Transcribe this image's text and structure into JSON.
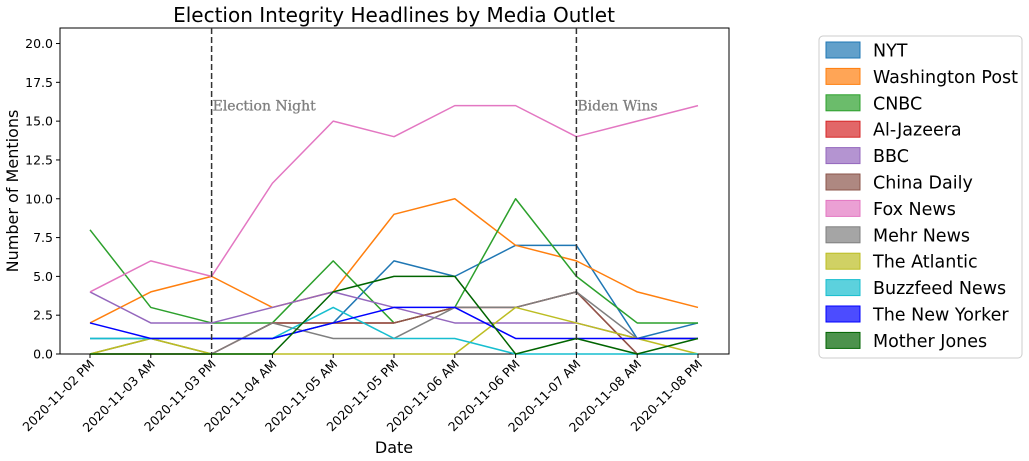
{
  "chart_data": {
    "type": "line",
    "title": "Election Integrity Headlines by Media Outlet",
    "xlabel": "Date",
    "ylabel": "Number of Mentions",
    "ylim": [
      0,
      21
    ],
    "yticks": [
      "0.0",
      "2.5",
      "5.0",
      "7.5",
      "10.0",
      "12.5",
      "15.0",
      "17.5",
      "20.0"
    ],
    "ytick_values": [
      0,
      2.5,
      5,
      7.5,
      10,
      12.5,
      15,
      17.5,
      20
    ],
    "categories": [
      "2020-11-02 PM",
      "2020-11-03 AM",
      "2020-11-03 PM",
      "2020-11-04 AM",
      "2020-11-05 AM",
      "2020-11-05 PM",
      "2020-11-06 AM",
      "2020-11-06 PM",
      "2020-11-07 AM",
      "2020-11-08 AM",
      "2020-11-08 PM"
    ],
    "grid": false,
    "legend_position": "right",
    "annotations": [
      {
        "text": "Election Night",
        "at_category": "2020-11-03 PM",
        "y": 16
      },
      {
        "text": "Biden Wins",
        "at_category": "2020-11-07 AM",
        "y": 16
      }
    ],
    "series": [
      {
        "name": "NYT",
        "color": "#1f77b4",
        "values": [
          1,
          1,
          1,
          1,
          2,
          6,
          5,
          7,
          7,
          1,
          2
        ]
      },
      {
        "name": "Washington Post",
        "color": "#ff7f0e",
        "values": [
          2,
          4,
          5,
          3,
          4,
          9,
          10,
          7,
          6,
          4,
          3
        ]
      },
      {
        "name": "CNBC",
        "color": "#2ca02c",
        "values": [
          8,
          3,
          2,
          2,
          6,
          2,
          3,
          10,
          5,
          2,
          2
        ]
      },
      {
        "name": "Al-Jazeera",
        "color": "#d62728",
        "values": [
          0,
          0,
          0,
          2,
          2,
          2,
          3,
          3,
          4,
          0,
          0
        ]
      },
      {
        "name": "BBC",
        "color": "#9467bd",
        "values": [
          4,
          2,
          2,
          3,
          4,
          3,
          2,
          2,
          2,
          1,
          1
        ]
      },
      {
        "name": "China Daily",
        "color": "#8c564b",
        "values": [
          0,
          0,
          0,
          2,
          2,
          2,
          3,
          3,
          4,
          0,
          0
        ]
      },
      {
        "name": "Fox News",
        "color": "#e377c2",
        "values": [
          4,
          6,
          5,
          11,
          15,
          14,
          16,
          16,
          14,
          15,
          16
        ]
      },
      {
        "name": "Mehr News",
        "color": "#7f7f7f",
        "values": [
          0,
          1,
          0,
          2,
          1,
          1,
          3,
          3,
          4,
          1,
          1
        ]
      },
      {
        "name": "The Atlantic",
        "color": "#bcbd22",
        "values": [
          0,
          1,
          0,
          0,
          0,
          0,
          0,
          3,
          2,
          1,
          0
        ]
      },
      {
        "name": "Buzzfeed News",
        "color": "#17becf",
        "values": [
          1,
          1,
          1,
          1,
          3,
          1,
          1,
          0,
          0,
          0,
          0
        ]
      },
      {
        "name": "The New Yorker",
        "color": "#0000ff",
        "values": [
          2,
          1,
          1,
          1,
          2,
          3,
          3,
          1,
          1,
          1,
          1
        ]
      },
      {
        "name": "Mother Jones",
        "color": "#006400",
        "values": [
          0,
          0,
          0,
          0,
          4,
          5,
          5,
          0,
          1,
          0,
          1
        ]
      }
    ]
  }
}
